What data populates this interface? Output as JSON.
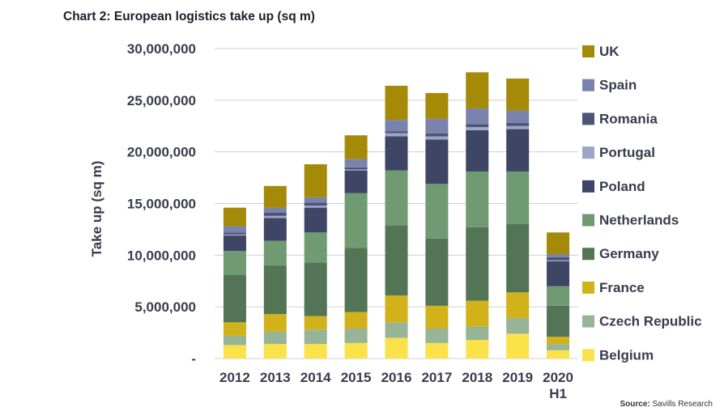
{
  "title": "Chart 2: European logistics take up (sq m)",
  "source_label": "Source:",
  "source_text": "Savills Research",
  "chart_data": {
    "type": "bar",
    "stacked": true,
    "title": "Chart 2: European logistics take up (sq m)",
    "xlabel": "",
    "ylabel": "Take up (sq m)",
    "ylim": [
      0,
      30000000
    ],
    "yticks": [
      "-",
      "5,000,000",
      "10,000,000",
      "15,000,000",
      "20,000,000",
      "25,000,000",
      "30,000,000"
    ],
    "grid": true,
    "legend": "right",
    "categories": [
      [
        "2012"
      ],
      [
        "2013"
      ],
      [
        "2014"
      ],
      [
        "2015"
      ],
      [
        "2016"
      ],
      [
        "2017"
      ],
      [
        "2018"
      ],
      [
        "2019"
      ],
      [
        "2020",
        "H1"
      ]
    ],
    "series": [
      {
        "name": "Belgium",
        "color": "#fbe14a",
        "values": [
          1300000,
          1400000,
          1400000,
          1500000,
          2000000,
          1500000,
          1800000,
          2400000,
          800000
        ]
      },
      {
        "name": "Czech Republic",
        "color": "#97b497",
        "values": [
          900000,
          1200000,
          1400000,
          1400000,
          1500000,
          1400000,
          1300000,
          1500000,
          600000
        ]
      },
      {
        "name": "France",
        "color": "#d1b21b",
        "values": [
          1300000,
          1700000,
          1300000,
          1600000,
          2600000,
          2200000,
          2500000,
          2500000,
          700000
        ]
      },
      {
        "name": "Germany",
        "color": "#537455",
        "values": [
          4600000,
          4700000,
          5200000,
          6200000,
          6800000,
          6500000,
          7100000,
          6600000,
          3000000
        ]
      },
      {
        "name": "Netherlands",
        "color": "#6f9a72",
        "values": [
          2300000,
          2400000,
          2900000,
          5300000,
          5300000,
          5300000,
          5400000,
          5100000,
          1900000
        ]
      },
      {
        "name": "Poland",
        "color": "#3e4565",
        "values": [
          1500000,
          2200000,
          2400000,
          2200000,
          3300000,
          4300000,
          4000000,
          4100000,
          2400000
        ]
      },
      {
        "name": "Portugal",
        "color": "#9da6c4",
        "values": [
          100000,
          200000,
          200000,
          100000,
          300000,
          300000,
          300000,
          300000,
          100000
        ]
      },
      {
        "name": "Romania",
        "color": "#4c5579",
        "values": [
          200000,
          300000,
          300000,
          200000,
          200000,
          300000,
          300000,
          300000,
          300000
        ]
      },
      {
        "name": "Spain",
        "color": "#7a83ad",
        "values": [
          600000,
          500000,
          500000,
          800000,
          1100000,
          1400000,
          1500000,
          1200000,
          300000
        ]
      },
      {
        "name": "UK",
        "color": "#a48a07",
        "values": [
          1800000,
          2100000,
          3200000,
          2300000,
          3300000,
          2500000,
          3500000,
          3100000,
          2100000
        ]
      }
    ]
  }
}
